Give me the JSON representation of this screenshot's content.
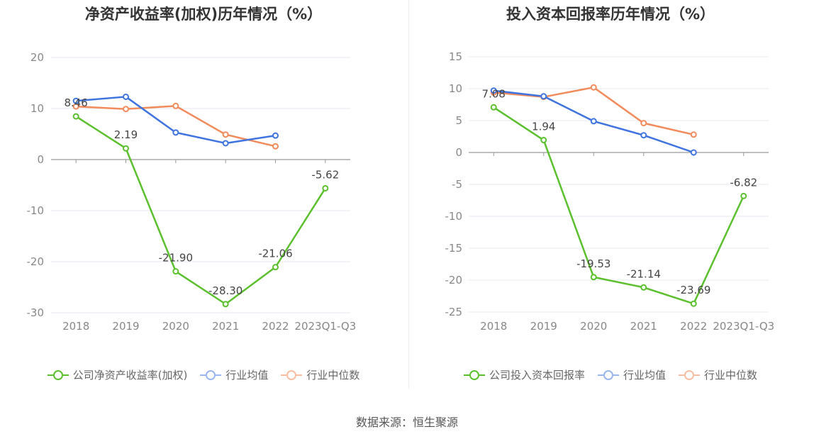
{
  "source_label": "数据来源：恒生聚源",
  "colors": {
    "company": "#5cc02e",
    "avg": "#3f73e0",
    "median": "#f28b5b"
  },
  "chart_data": [
    {
      "type": "line",
      "title": "净资产收益率(加权)历年情况（%）",
      "categories": [
        "2018",
        "2019",
        "2020",
        "2021",
        "2022",
        "2023Q1-Q3"
      ],
      "ylim": [
        -30,
        20
      ],
      "yticks": [
        20,
        10,
        0,
        -10,
        -20,
        -30
      ],
      "grid": true,
      "legend_position": "bottom",
      "series": [
        {
          "name": "公司净资产收益率(加权)",
          "key": "company",
          "values": [
            8.46,
            2.19,
            -21.9,
            -28.3,
            -21.06,
            -5.62
          ],
          "labels": [
            "8.46",
            "2.19",
            "-21.90",
            "-28.30",
            "-21.06",
            "-5.62"
          ]
        },
        {
          "name": "行业均值",
          "key": "avg",
          "values": [
            11.5,
            12.3,
            5.3,
            3.2,
            4.7,
            null
          ]
        },
        {
          "name": "行业中位数",
          "key": "median",
          "values": [
            10.4,
            9.9,
            10.5,
            4.9,
            2.6,
            null
          ]
        }
      ]
    },
    {
      "type": "line",
      "title": "投入资本回报率历年情况（%）",
      "categories": [
        "2018",
        "2019",
        "2020",
        "2021",
        "2022",
        "2023Q1-Q3"
      ],
      "ylim": [
        -25,
        15
      ],
      "yticks": [
        15,
        10,
        5,
        0,
        -5,
        -10,
        -15,
        -20,
        -25
      ],
      "grid": true,
      "legend_position": "bottom",
      "series": [
        {
          "name": "公司投入资本回报率",
          "key": "company",
          "values": [
            7.08,
            1.94,
            -19.53,
            -21.14,
            -23.69,
            -6.82
          ],
          "labels": [
            "7.08",
            "1.94",
            "-19.53",
            "-21.14",
            "-23.69",
            "-6.82"
          ]
        },
        {
          "name": "行业均值",
          "key": "avg",
          "values": [
            9.7,
            8.8,
            4.9,
            2.7,
            0.0,
            null
          ]
        },
        {
          "name": "行业中位数",
          "key": "median",
          "values": [
            9.4,
            8.7,
            10.2,
            4.6,
            2.8,
            null
          ]
        }
      ]
    }
  ]
}
